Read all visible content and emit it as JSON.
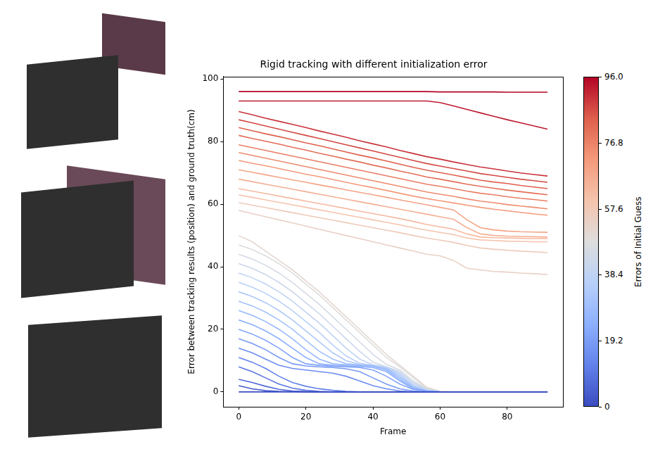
{
  "chart_data": {
    "type": "line",
    "title": "Rigid tracking with different initialization error",
    "x_label": "Frame",
    "y_label": "Error between tracking results (position) and ground truth(cm)",
    "x": [
      0,
      4,
      8,
      12,
      16,
      20,
      24,
      28,
      32,
      36,
      40,
      44,
      48,
      52,
      56,
      60,
      64,
      68,
      72,
      76,
      80,
      84,
      88,
      92
    ],
    "xlim": [
      -4.6,
      96.6
    ],
    "xticks": [
      0,
      20,
      40,
      60,
      80
    ],
    "ylim": [
      -4.8,
      100.8
    ],
    "yticks": [
      0,
      20,
      40,
      60,
      80,
      100
    ],
    "grid": false,
    "colorbar": {
      "label": "Errors of Initial Guess",
      "range": [
        0,
        96
      ],
      "ticks": [
        0,
        19.2,
        38.4,
        57.6,
        76.8,
        {
          "value": 96,
          "label": "96.0"
        }
      ]
    },
    "series": [
      {
        "color": "#3b4cc0",
        "values": [
          0,
          0,
          0,
          0,
          0,
          0,
          0,
          0,
          0,
          0,
          0,
          0,
          0,
          0,
          0,
          0,
          0,
          0,
          0,
          0,
          0,
          0,
          0,
          0
        ]
      },
      {
        "color": "#455acb",
        "values": [
          2,
          1,
          0.4,
          0.2,
          0.1,
          0,
          0,
          0,
          0,
          0,
          0,
          0,
          0,
          0,
          0,
          0,
          0,
          0,
          0,
          0,
          0,
          0,
          0,
          0
        ]
      },
      {
        "color": "#4f67d5",
        "values": [
          4,
          3,
          1.8,
          0.8,
          0.3,
          0.1,
          0,
          0,
          0,
          0,
          0,
          0,
          0,
          0,
          0,
          0,
          0,
          0,
          0,
          0,
          0,
          0,
          0,
          0
        ]
      },
      {
        "color": "#5874e0",
        "values": [
          8,
          6.5,
          4.5,
          2.5,
          1.2,
          0.5,
          0.2,
          0,
          0,
          0,
          0,
          0,
          0,
          0,
          0,
          0,
          0,
          0,
          0,
          0,
          0,
          0,
          0,
          0
        ]
      },
      {
        "color": "#6282ea",
        "values": [
          11,
          9.5,
          7.5,
          5,
          3,
          1.8,
          1,
          0.5,
          0.2,
          0,
          0,
          0,
          0,
          0,
          0,
          0,
          0,
          0,
          0,
          0,
          0,
          0,
          0,
          0
        ]
      },
      {
        "color": "#6d8def",
        "values": [
          14,
          12.5,
          10.5,
          8.5,
          7.5,
          7,
          6.5,
          6,
          5,
          3.5,
          2,
          1,
          0.3,
          0,
          0,
          0,
          0,
          0,
          0,
          0,
          0,
          0,
          0,
          0
        ]
      },
      {
        "color": "#7799f4",
        "values": [
          17,
          15.5,
          13.5,
          11,
          9,
          8.3,
          8,
          7.8,
          7.4,
          6.5,
          4.5,
          2.5,
          1,
          0.3,
          0,
          0,
          0,
          0,
          0,
          0,
          0,
          0,
          0,
          0
        ]
      },
      {
        "color": "#82a4f9",
        "values": [
          20,
          18.5,
          16.5,
          14,
          11,
          9,
          8.5,
          8.2,
          8,
          7.8,
          7,
          5,
          2.5,
          0.8,
          0.2,
          0,
          0,
          0,
          0,
          0,
          0,
          0,
          0,
          0
        ]
      },
      {
        "color": "#8db0fe",
        "values": [
          23,
          21.5,
          19.5,
          17,
          14,
          11,
          9,
          8.5,
          8.3,
          8.1,
          7.8,
          6.5,
          3.5,
          1,
          0.3,
          0,
          0,
          0,
          0,
          0,
          0,
          0,
          0,
          0
        ]
      },
      {
        "color": "#98b8fd",
        "values": [
          26,
          24.5,
          22.5,
          20,
          17,
          13.5,
          10.5,
          9,
          8.6,
          8.4,
          8.2,
          7,
          4,
          1.2,
          0.3,
          0,
          0,
          0,
          0,
          0,
          0,
          0,
          0,
          0
        ]
      },
      {
        "color": "#a2c0fb",
        "values": [
          29,
          27.5,
          25.5,
          23,
          20,
          16.5,
          13,
          10.5,
          9,
          8.6,
          8.3,
          7.3,
          4.5,
          1.5,
          0.3,
          0,
          0,
          0,
          0,
          0,
          0,
          0,
          0,
          0
        ]
      },
      {
        "color": "#adc8fa",
        "values": [
          32,
          30.5,
          28.5,
          26,
          23,
          19.5,
          16,
          12.5,
          10,
          8.8,
          8.4,
          7.5,
          5,
          1.8,
          0.4,
          0,
          0,
          0,
          0,
          0,
          0,
          0,
          0,
          0
        ]
      },
      {
        "color": "#b8d0f9",
        "values": [
          35,
          33.5,
          31.5,
          29,
          26,
          22.5,
          19,
          15,
          11.5,
          9.2,
          8.5,
          7.7,
          5.5,
          2,
          0.5,
          0,
          0,
          0,
          0,
          0,
          0,
          0,
          0,
          0
        ]
      },
      {
        "color": "#c1d3f2",
        "values": [
          38,
          36.5,
          34.5,
          32,
          29,
          25.5,
          22,
          18,
          14,
          10.5,
          8.7,
          7.9,
          6,
          2.5,
          0.6,
          0,
          0,
          0,
          0,
          0,
          0,
          0,
          0,
          0
        ]
      },
      {
        "color": "#cad6eb",
        "values": [
          41,
          39.5,
          37.5,
          35,
          32,
          28.5,
          25,
          21,
          17,
          13,
          9.5,
          8,
          6.5,
          3,
          0.8,
          0,
          0,
          0,
          0,
          0,
          0,
          0,
          0,
          0
        ]
      },
      {
        "color": "#d4dae4",
        "values": [
          44,
          42.5,
          40.5,
          38,
          35,
          31.5,
          28,
          24,
          20,
          16,
          12,
          8.8,
          7,
          3.5,
          1,
          0,
          0,
          0,
          0,
          0,
          0,
          0,
          0,
          0
        ]
      },
      {
        "color": "#dddddd",
        "values": [
          47,
          45.5,
          43.5,
          41,
          38,
          34.5,
          31,
          27,
          23,
          19,
          15,
          11,
          8,
          4.5,
          1.2,
          0,
          0,
          0,
          0,
          0,
          0,
          0,
          0,
          0
        ]
      },
      {
        "color": "#e3d7d1",
        "values": [
          50,
          48,
          45,
          42,
          39,
          35.5,
          32,
          28,
          24,
          20,
          16,
          12,
          8.5,
          5,
          1.5,
          0.2,
          0,
          0,
          0,
          0,
          0,
          0,
          0,
          0
        ]
      },
      {
        "color": "#e9d0c5",
        "values": [
          58,
          57,
          56,
          55,
          54,
          53,
          52,
          51,
          50,
          49,
          48,
          47,
          46,
          45,
          44,
          43.5,
          42,
          39.5,
          39,
          38.5,
          38.3,
          38,
          37.8,
          37.5
        ]
      },
      {
        "color": "#efcab9",
        "values": [
          60.5,
          59.7,
          58.9,
          58.1,
          57.3,
          56.5,
          55.7,
          54.9,
          54.1,
          53.3,
          52.5,
          51.7,
          50.9,
          50,
          49.2,
          48.5,
          47.8,
          46.8,
          46,
          45.6,
          45.3,
          45,
          44.8,
          44.5
        ]
      },
      {
        "color": "#f5c4ad",
        "values": [
          63,
          62.2,
          61.4,
          60.6,
          59.8,
          59,
          58.2,
          57.4,
          56.6,
          55.8,
          55,
          54.2,
          53.4,
          52.5,
          51.7,
          51,
          50.3,
          49.2,
          48.6,
          48.4,
          48.2,
          48.1,
          48,
          48
        ]
      },
      {
        "color": "#f5b9a0",
        "values": [
          65,
          64.2,
          63.4,
          62.6,
          61.8,
          61,
          60.2,
          59.4,
          58.6,
          57.8,
          57,
          56.2,
          55.4,
          54.5,
          53.5,
          52.8,
          52,
          50.5,
          49.5,
          49.3,
          49.2,
          49.1,
          49,
          49
        ]
      },
      {
        "color": "#f4af94",
        "values": [
          68,
          67.2,
          66.4,
          65.6,
          64.8,
          64,
          63.2,
          62.4,
          61.6,
          60.8,
          60,
          59.2,
          58.4,
          57.6,
          56.8,
          56,
          55.2,
          52.5,
          50.5,
          50,
          49.8,
          49.7,
          49.6,
          49.5
        ]
      },
      {
        "color": "#f4a487",
        "values": [
          71,
          70.2,
          69.4,
          68.6,
          67.8,
          67,
          66.2,
          65.4,
          64.6,
          63.8,
          63,
          62.2,
          61.4,
          60.6,
          59.8,
          59,
          58.2,
          55,
          52.5,
          51.8,
          51.4,
          51.2,
          51.1,
          51
        ]
      },
      {
        "color": "#f49a7b",
        "values": [
          74,
          73.1,
          72.3,
          71.4,
          70.5,
          69.6,
          68.8,
          67.9,
          67,
          66.1,
          65.3,
          64.4,
          63.5,
          62.6,
          61.8,
          61.1,
          60.4,
          59.7,
          59,
          58.4,
          57.9,
          57.4,
          56.9,
          56.5
        ]
      },
      {
        "color": "#ee8b6f",
        "values": [
          76.5,
          75.6,
          74.7,
          73.8,
          72.9,
          72,
          71.1,
          70.2,
          69.3,
          68.4,
          67.5,
          66.6,
          65.7,
          64.8,
          63.9,
          63.2,
          62.5,
          61.7,
          61,
          60.5,
          59.9,
          59.4,
          59,
          58.5
        ]
      },
      {
        "color": "#e97d64",
        "values": [
          79,
          78.1,
          77.2,
          76.3,
          75.4,
          74.5,
          73.6,
          72.7,
          71.8,
          70.9,
          70,
          69.1,
          68.2,
          67.3,
          66.4,
          65.7,
          65,
          64.2,
          63.5,
          63,
          62.4,
          61.9,
          61.5,
          61
        ]
      },
      {
        "color": "#e36e58",
        "values": [
          82,
          81,
          80.1,
          79.2,
          78.2,
          77.3,
          76.3,
          75.4,
          74.4,
          73.5,
          72.5,
          71.6,
          70.6,
          69.7,
          68.7,
          68,
          67.2,
          66.4,
          65.7,
          65.1,
          64.5,
          64,
          63.5,
          63
        ]
      },
      {
        "color": "#de604d",
        "values": [
          84.5,
          83.5,
          82.5,
          81.6,
          80.6,
          79.6,
          78.7,
          77.7,
          76.7,
          75.7,
          74.8,
          73.8,
          72.8,
          71.8,
          70.9,
          70.1,
          69.3,
          68.5,
          67.7,
          67.1,
          66.6,
          66,
          65.5,
          65
        ]
      },
      {
        "color": "#d34943",
        "values": [
          87,
          86,
          85,
          84,
          83,
          82,
          81,
          80,
          79,
          78,
          77,
          76,
          75,
          74,
          73,
          72.2,
          71.4,
          70.6,
          69.8,
          69.2,
          68.6,
          68,
          67.5,
          67
        ]
      },
      {
        "color": "#c93239",
        "values": [
          89.6,
          88.6,
          87.5,
          86.5,
          85.5,
          84.5,
          83.4,
          82.4,
          81.4,
          80.3,
          79.3,
          78.3,
          77.2,
          76.2,
          75.2,
          74.4,
          73.5,
          72.7,
          71.9,
          71.3,
          70.6,
          70,
          69.5,
          69
        ]
      },
      {
        "color": "#be1b30",
        "values": [
          93,
          93,
          93,
          93,
          93,
          93,
          93,
          93,
          93,
          93,
          93,
          93,
          93,
          93,
          93,
          92.5,
          91.4,
          90.3,
          89.2,
          88.1,
          87,
          86,
          85,
          84
        ]
      },
      {
        "color": "#b40426",
        "values": [
          96,
          96,
          96,
          96,
          96,
          96,
          96,
          96,
          96,
          96,
          96,
          96,
          96,
          96,
          96,
          95.9,
          95.9,
          95.9,
          95.9,
          95.9,
          95.8,
          95.8,
          95.8,
          95.8
        ]
      }
    ]
  }
}
